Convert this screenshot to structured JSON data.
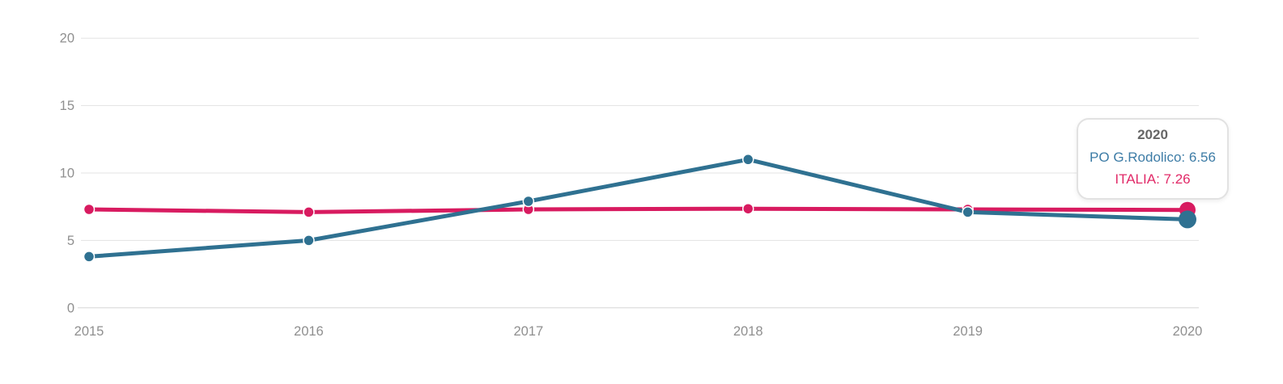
{
  "chart_data": {
    "type": "line",
    "title": "",
    "xlabel": "",
    "ylabel": "",
    "x_labels": [
      "2015",
      "2016",
      "2017",
      "2018",
      "2019",
      "2020"
    ],
    "y_ticks": [
      0,
      5,
      10,
      15,
      20
    ],
    "ylim": [
      0,
      20
    ],
    "grid": true,
    "legend_position": "none",
    "hovered_index": 5,
    "series": [
      {
        "name": "ITALIA",
        "color": "#D81B60",
        "values": [
          7.3,
          7.1,
          7.3,
          7.35,
          7.3,
          7.26
        ],
        "marker_radius": 6.5,
        "hover_marker_radius": 10
      },
      {
        "name": "PO G.Rodolico",
        "color": "#2F7191",
        "values": [
          3.8,
          5.0,
          7.9,
          11.0,
          7.1,
          6.56
        ],
        "marker_radius": 6.5,
        "hover_marker_radius": 11
      }
    ]
  },
  "tooltip": {
    "title": "2020",
    "lines": [
      {
        "series": "PO G.Rodolico",
        "text": "PO G.Rodolico: 6.56",
        "color": "#3D7CA6"
      },
      {
        "series": "ITALIA",
        "text": "ITALIA: 7.26",
        "color": "#E12A68"
      }
    ]
  },
  "style": {
    "background": "#FFFFFF",
    "grid_color": "#E3E3E3",
    "axis_line_color": "#D6D6D6",
    "axis_label_color": "#8F8F8F",
    "tooltip_title_color": "#666666",
    "tooltip_border_color": "#E2E2E2",
    "marker_ring_color": "#FFFFFF"
  }
}
